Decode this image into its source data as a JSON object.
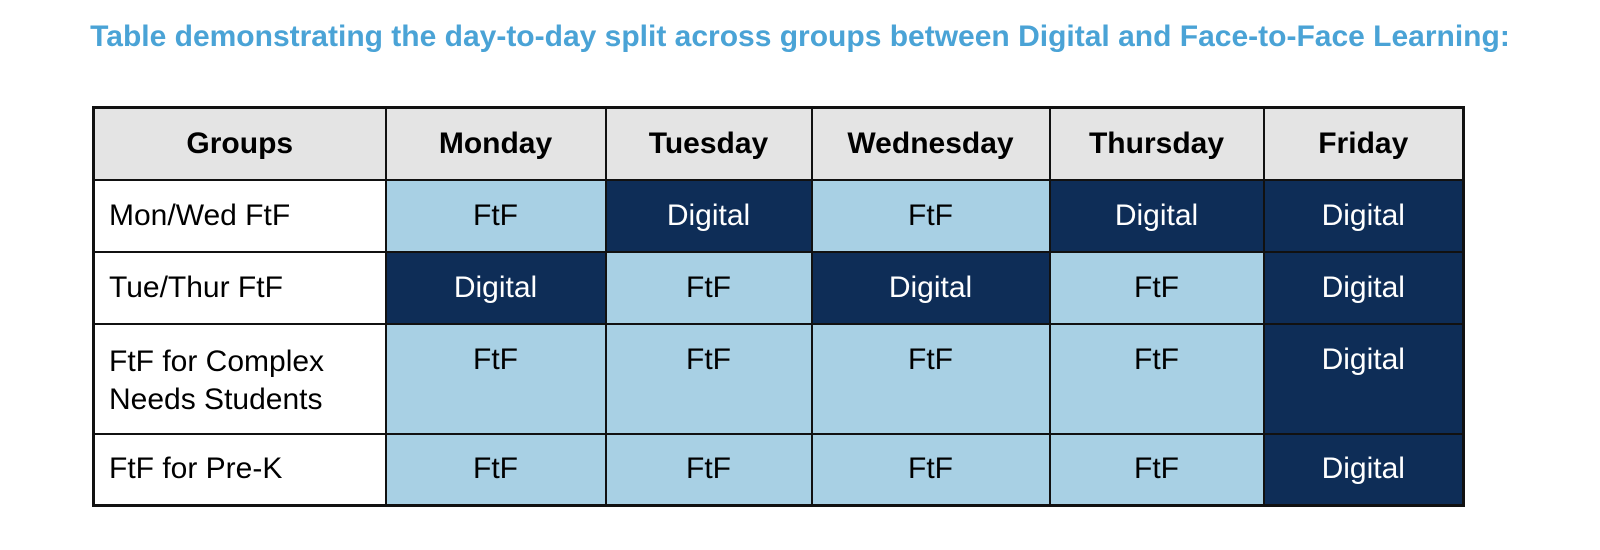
{
  "title": "Table demonstrating the day-to-day split across groups between Digital and Face-to-Face Learning:",
  "table": {
    "headers": [
      "Groups",
      "Monday",
      "Tuesday",
      "Wednesday",
      "Thursday",
      "Friday"
    ],
    "rows": [
      {
        "group": "Mon/Wed FtF",
        "cells": [
          "FtF",
          "Digital",
          "FtF",
          "Digital",
          "Digital"
        ]
      },
      {
        "group": "Tue/Thur FtF",
        "cells": [
          "Digital",
          "FtF",
          "Digital",
          "FtF",
          "Digital"
        ]
      },
      {
        "group_line1": "FtF for Complex",
        "group_line2": "Needs Students",
        "cells": [
          "FtF",
          "FtF",
          "FtF",
          "FtF",
          "Digital"
        ]
      },
      {
        "group": "FtF for Pre-K",
        "cells": [
          "FtF",
          "FtF",
          "FtF",
          "FtF",
          "Digital"
        ]
      }
    ]
  },
  "colors": {
    "title": "#4aa3d6",
    "header_bg": "#e4e4e4",
    "ftf_bg": "#a8d0e4",
    "digital_bg": "#0e2d57",
    "digital_text": "#ffffff"
  }
}
